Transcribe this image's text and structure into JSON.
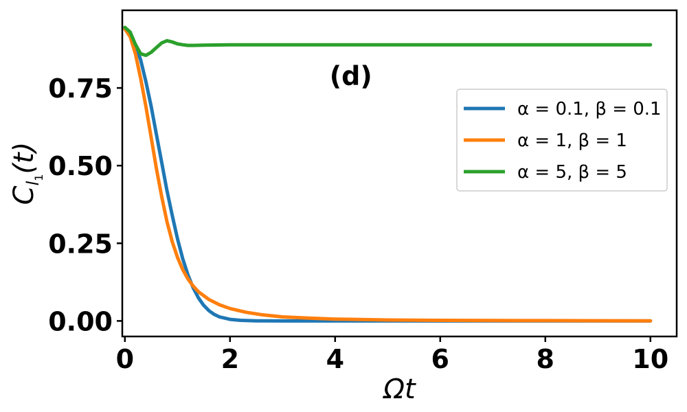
{
  "chart_data": {
    "type": "line",
    "title": "",
    "xlabel": "Ωt",
    "ylabel": "C_l1(t)",
    "ylabel_main": "C",
    "ylabel_sub": "l",
    "ylabel_subsub": "1",
    "ylabel_arg": "(t)",
    "annotation": "(d)",
    "xlim": [
      -0.05,
      10.5
    ],
    "ylim": [
      -0.05,
      1.0
    ],
    "xticks": [
      0,
      2,
      4,
      6,
      8,
      10
    ],
    "xtick_labels": [
      "0",
      "2",
      "4",
      "6",
      "8",
      "10"
    ],
    "yticks": [
      0.0,
      0.25,
      0.5,
      0.75
    ],
    "ytick_labels": [
      "0.00",
      "0.25",
      "0.50",
      "0.75"
    ],
    "grid": false,
    "legend_position": "center-right",
    "series": [
      {
        "name": "α = 0.1, β = 0.1",
        "color": "#1f77b4",
        "x": [
          0,
          0.1,
          0.2,
          0.3,
          0.4,
          0.5,
          0.6,
          0.7,
          0.8,
          0.9,
          1.0,
          1.1,
          1.2,
          1.3,
          1.4,
          1.5,
          1.6,
          1.7,
          1.8,
          2.0,
          2.2,
          2.5,
          3.0,
          4.0,
          6.0,
          8.0,
          10.0
        ],
        "y": [
          0.94,
          0.925,
          0.89,
          0.84,
          0.77,
          0.69,
          0.6,
          0.51,
          0.42,
          0.34,
          0.265,
          0.2,
          0.148,
          0.106,
          0.074,
          0.05,
          0.033,
          0.021,
          0.013,
          0.005,
          0.002,
          0.0005,
          0.0,
          0.0,
          0.0,
          0.0,
          0.0
        ]
      },
      {
        "name": "α = 1, β = 1",
        "color": "#ff7f0e",
        "x": [
          0,
          0.1,
          0.2,
          0.3,
          0.4,
          0.5,
          0.6,
          0.7,
          0.8,
          0.9,
          1.0,
          1.1,
          1.2,
          1.3,
          1.4,
          1.6,
          1.8,
          2.0,
          2.3,
          2.6,
          3.0,
          3.5,
          4.0,
          5.0,
          6.0,
          8.0,
          10.0
        ],
        "y": [
          0.94,
          0.915,
          0.86,
          0.78,
          0.69,
          0.59,
          0.49,
          0.4,
          0.32,
          0.255,
          0.205,
          0.165,
          0.135,
          0.112,
          0.094,
          0.069,
          0.052,
          0.04,
          0.028,
          0.02,
          0.013,
          0.009,
          0.006,
          0.003,
          0.002,
          0.001,
          0.0005
        ]
      },
      {
        "name": "α = 5, β = 5",
        "color": "#2ca02c",
        "x": [
          0,
          0.1,
          0.2,
          0.3,
          0.4,
          0.5,
          0.6,
          0.7,
          0.8,
          0.9,
          1.0,
          1.1,
          1.2,
          1.3,
          1.5,
          2.0,
          3.0,
          5.0,
          7.0,
          10.0
        ],
        "y": [
          0.945,
          0.93,
          0.89,
          0.86,
          0.855,
          0.865,
          0.88,
          0.895,
          0.902,
          0.898,
          0.892,
          0.889,
          0.887,
          0.887,
          0.888,
          0.889,
          0.889,
          0.889,
          0.889,
          0.889
        ]
      }
    ]
  }
}
